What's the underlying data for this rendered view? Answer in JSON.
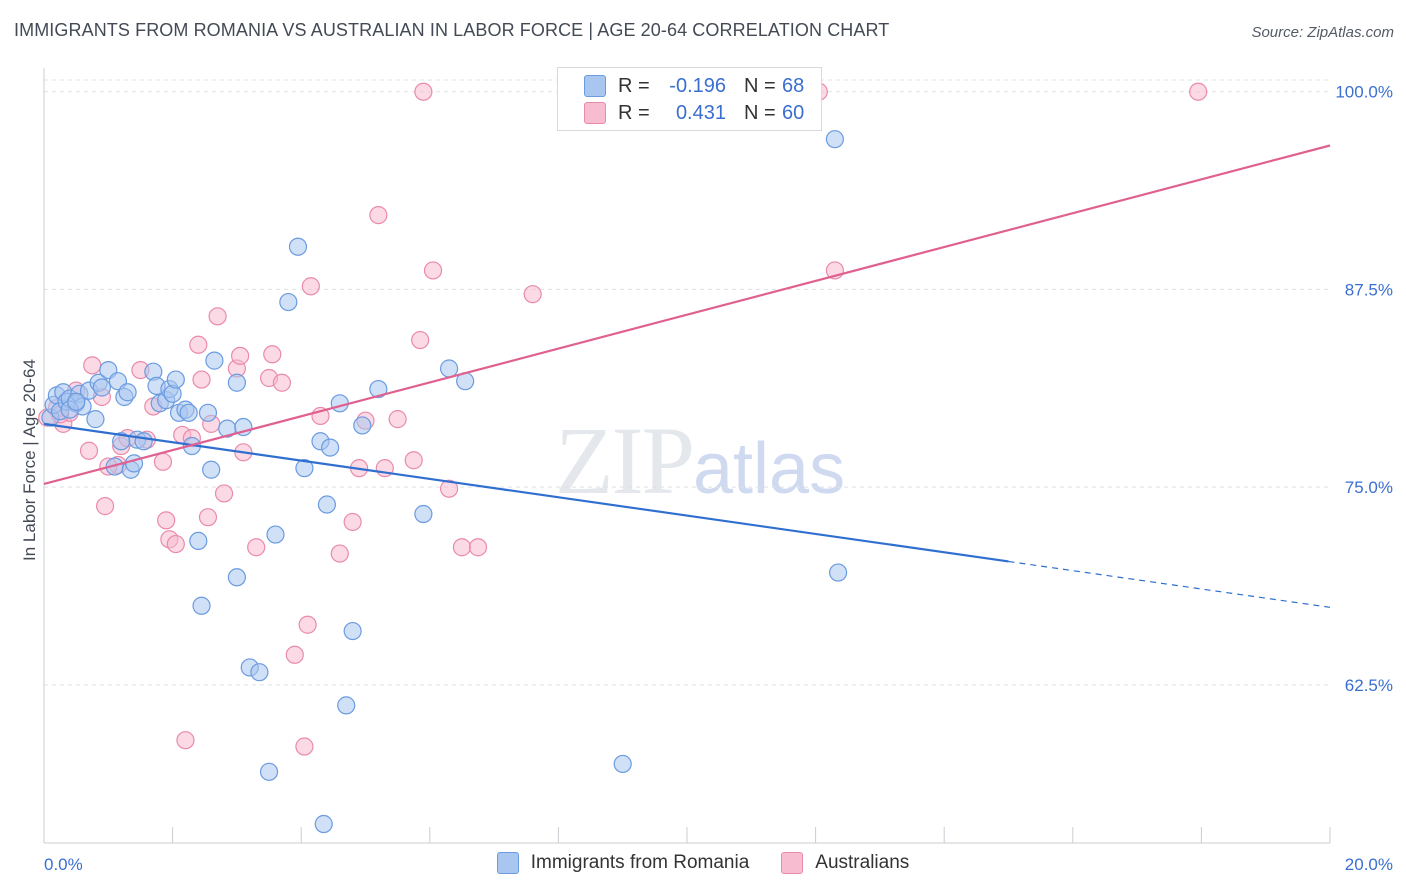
{
  "title": "IMMIGRANTS FROM ROMANIA VS AUSTRALIAN IN LABOR FORCE | AGE 20-64 CORRELATION CHART",
  "source": "Source: ZipAtlas.com",
  "watermark": {
    "zip": "ZIP",
    "atlas": "atlas"
  },
  "legend": {
    "rows": [
      {
        "r_label": "R =",
        "r_value": "-0.196",
        "n_label": "N =",
        "n_value": "68",
        "color": "#a9c6f0",
        "border": "#6b9be0"
      },
      {
        "r_label": "R =",
        "r_value": "0.431",
        "n_label": "N =",
        "n_value": "60",
        "color": "#f7bcd0",
        "border": "#ea8aab"
      }
    ]
  },
  "bottom_legend": [
    "Immigrants from Romania",
    "Australians"
  ],
  "chart_data": {
    "type": "scatter",
    "title": "IMMIGRANTS FROM ROMANIA VS AUSTRALIAN IN LABOR FORCE | AGE 20-64 CORRELATION CHART",
    "xlabel": "",
    "ylabel": "In Labor Force | Age 20-64",
    "xlim": [
      0,
      20
    ],
    "ylim": [
      52.5,
      101.5
    ],
    "x_tick_labels": [
      "0.0%",
      "20.0%"
    ],
    "y_ticks": [
      62.5,
      75.0,
      87.5,
      100.0
    ],
    "y_tick_labels": [
      "62.5%",
      "75.0%",
      "87.5%",
      "100.0%"
    ],
    "grid": true,
    "series": [
      {
        "name": "Immigrants from Romania",
        "color": "#a9c6f0",
        "edge": "#6b9be0",
        "line_color": "#2f6fd0",
        "trend": {
          "x": [
            0.0,
            15.0
          ],
          "y": [
            79.0,
            70.3
          ],
          "dash_to": [
            20.0,
            67.4
          ]
        },
        "points": [
          [
            0.1,
            79.4
          ],
          [
            0.15,
            80.2
          ],
          [
            0.2,
            80.8
          ],
          [
            0.25,
            79.8
          ],
          [
            0.3,
            81.0
          ],
          [
            0.35,
            80.4
          ],
          [
            0.4,
            80.6
          ],
          [
            0.5,
            80.3
          ],
          [
            0.55,
            80.9
          ],
          [
            0.6,
            80.1
          ],
          [
            0.7,
            81.1
          ],
          [
            0.8,
            79.3
          ],
          [
            0.85,
            81.6
          ],
          [
            0.9,
            81.3
          ],
          [
            1.0,
            82.4
          ],
          [
            1.1,
            76.3
          ],
          [
            1.15,
            81.7
          ],
          [
            1.25,
            80.7
          ],
          [
            1.3,
            81.0
          ],
          [
            1.35,
            76.1
          ],
          [
            1.45,
            78.0
          ],
          [
            1.55,
            77.9
          ],
          [
            1.7,
            82.3
          ],
          [
            1.75,
            81.4
          ],
          [
            1.8,
            80.3
          ],
          [
            1.9,
            80.5
          ],
          [
            1.95,
            81.2
          ],
          [
            2.0,
            80.9
          ],
          [
            2.05,
            81.8
          ],
          [
            2.1,
            79.7
          ],
          [
            2.2,
            79.9
          ],
          [
            2.25,
            79.7
          ],
          [
            2.3,
            77.6
          ],
          [
            2.4,
            71.6
          ],
          [
            2.45,
            67.5
          ],
          [
            2.55,
            79.7
          ],
          [
            2.6,
            76.1
          ],
          [
            2.65,
            83.0
          ],
          [
            2.85,
            78.7
          ],
          [
            3.0,
            69.3
          ],
          [
            3.0,
            81.6
          ],
          [
            3.1,
            78.8
          ],
          [
            3.2,
            63.6
          ],
          [
            3.35,
            63.3
          ],
          [
            3.5,
            57.0
          ],
          [
            3.6,
            72.0
          ],
          [
            3.8,
            86.7
          ],
          [
            3.95,
            90.2
          ],
          [
            4.05,
            76.2
          ],
          [
            4.3,
            77.9
          ],
          [
            4.35,
            53.7
          ],
          [
            4.4,
            73.9
          ],
          [
            4.45,
            77.5
          ],
          [
            4.6,
            80.3
          ],
          [
            4.7,
            61.2
          ],
          [
            4.8,
            65.9
          ],
          [
            4.95,
            78.9
          ],
          [
            5.2,
            81.2
          ],
          [
            5.9,
            73.3
          ],
          [
            6.3,
            82.5
          ],
          [
            6.55,
            81.7
          ],
          [
            9.0,
            57.5
          ],
          [
            12.3,
            97.0
          ],
          [
            12.35,
            69.6
          ],
          [
            0.4,
            79.9
          ],
          [
            0.5,
            80.4
          ],
          [
            1.2,
            77.9
          ],
          [
            1.4,
            76.5
          ]
        ]
      },
      {
        "name": "Australians",
        "color": "#f7bcd0",
        "edge": "#ea8aab",
        "line_color": "#e06090",
        "trend": {
          "x": [
            0.0,
            20.0
          ],
          "y": [
            75.2,
            96.6
          ]
        },
        "points": [
          [
            0.05,
            79.4
          ],
          [
            0.2,
            80.0
          ],
          [
            0.3,
            79.0
          ],
          [
            0.4,
            79.7
          ],
          [
            0.5,
            81.1
          ],
          [
            0.7,
            77.3
          ],
          [
            0.75,
            82.7
          ],
          [
            0.9,
            80.7
          ],
          [
            0.95,
            73.8
          ],
          [
            1.15,
            76.4
          ],
          [
            1.2,
            77.6
          ],
          [
            1.3,
            78.1
          ],
          [
            1.5,
            82.4
          ],
          [
            1.6,
            78.0
          ],
          [
            1.7,
            80.1
          ],
          [
            1.85,
            76.6
          ],
          [
            1.9,
            72.9
          ],
          [
            1.95,
            71.7
          ],
          [
            2.05,
            71.4
          ],
          [
            2.15,
            78.3
          ],
          [
            2.2,
            59.0
          ],
          [
            2.3,
            78.1
          ],
          [
            2.4,
            84.0
          ],
          [
            2.45,
            81.8
          ],
          [
            2.55,
            73.1
          ],
          [
            2.7,
            85.8
          ],
          [
            2.8,
            74.6
          ],
          [
            3.0,
            82.5
          ],
          [
            3.05,
            83.3
          ],
          [
            3.1,
            77.2
          ],
          [
            3.3,
            71.2
          ],
          [
            3.5,
            81.9
          ],
          [
            3.55,
            83.4
          ],
          [
            3.7,
            81.6
          ],
          [
            3.9,
            64.4
          ],
          [
            4.05,
            58.6
          ],
          [
            4.1,
            66.3
          ],
          [
            4.15,
            87.7
          ],
          [
            4.6,
            70.8
          ],
          [
            4.8,
            72.8
          ],
          [
            4.9,
            76.2
          ],
          [
            5.0,
            79.2
          ],
          [
            5.2,
            92.2
          ],
          [
            5.3,
            76.2
          ],
          [
            5.5,
            79.3
          ],
          [
            5.75,
            76.7
          ],
          [
            5.85,
            84.3
          ],
          [
            5.9,
            100.0
          ],
          [
            6.05,
            88.7
          ],
          [
            6.3,
            74.9
          ],
          [
            6.5,
            71.2
          ],
          [
            6.75,
            71.2
          ],
          [
            7.6,
            87.2
          ],
          [
            12.05,
            100.0
          ],
          [
            12.3,
            88.7
          ],
          [
            17.95,
            100.0
          ],
          [
            0.25,
            79.6
          ],
          [
            1.0,
            76.3
          ],
          [
            2.6,
            79.0
          ],
          [
            4.3,
            79.5
          ]
        ]
      }
    ]
  }
}
